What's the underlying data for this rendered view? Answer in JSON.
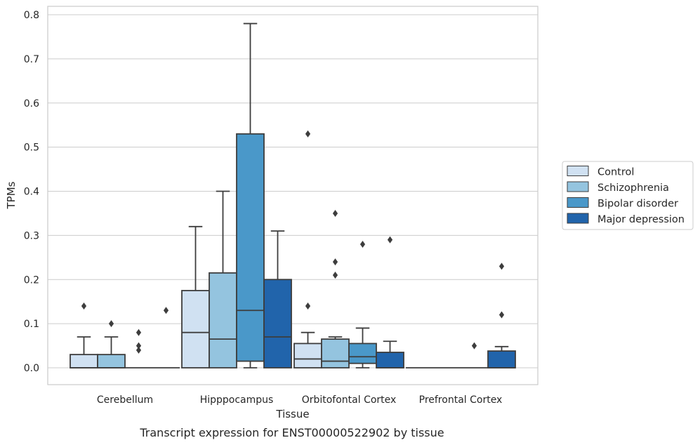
{
  "chart_data": {
    "type": "box",
    "xlabel": "Tissue",
    "ylabel": "TPMs",
    "caption": "Transcript expression for ENST00000522902 by tissue",
    "ylim": [
      -0.04,
      0.82
    ],
    "yticks": [
      "0.0",
      "0.1",
      "0.2",
      "0.3",
      "0.4",
      "0.5",
      "0.6",
      "0.7",
      "0.8"
    ],
    "grid": true,
    "legend_position": "right",
    "categories": [
      "Cerebellum",
      "Hipppocampus",
      "Orbitofontal Cortex",
      "Prefrontal Cortex"
    ],
    "series": [
      {
        "name": "Control",
        "color": "#d0e1f2",
        "boxes": [
          {
            "whislo": 0.0,
            "q1": 0.0,
            "med": 0.0,
            "q3": 0.03,
            "whishi": 0.07,
            "fliers": [
              0.14
            ]
          },
          {
            "whislo": 0.0,
            "q1": 0.0,
            "med": 0.08,
            "q3": 0.175,
            "whishi": 0.32,
            "fliers": []
          },
          {
            "whislo": 0.0,
            "q1": 0.0,
            "med": 0.02,
            "q3": 0.055,
            "whishi": 0.08,
            "fliers": [
              0.14,
              0.53
            ]
          },
          {
            "whislo": 0.0,
            "q1": 0.0,
            "med": 0.0,
            "q3": 0.0,
            "whishi": 0.0,
            "fliers": []
          }
        ]
      },
      {
        "name": "Schizophrenia",
        "color": "#94c4df",
        "boxes": [
          {
            "whislo": 0.0,
            "q1": 0.0,
            "med": 0.0,
            "q3": 0.03,
            "whishi": 0.07,
            "fliers": [
              0.1
            ]
          },
          {
            "whislo": 0.0,
            "q1": 0.0,
            "med": 0.065,
            "q3": 0.215,
            "whishi": 0.4,
            "fliers": []
          },
          {
            "whislo": 0.0,
            "q1": 0.0,
            "med": 0.015,
            "q3": 0.065,
            "whishi": 0.07,
            "fliers": [
              0.21,
              0.24,
              0.35
            ]
          },
          {
            "whislo": 0.0,
            "q1": 0.0,
            "med": 0.0,
            "q3": 0.0,
            "whishi": 0.0,
            "fliers": []
          }
        ]
      },
      {
        "name": "Bipolar disorder",
        "color": "#4a98c9",
        "boxes": [
          {
            "whislo": 0.0,
            "q1": 0.0,
            "med": 0.0,
            "q3": 0.0,
            "whishi": 0.0,
            "fliers": [
              0.04,
              0.05,
              0.08
            ]
          },
          {
            "whislo": 0.0,
            "q1": 0.015,
            "med": 0.13,
            "q3": 0.53,
            "whishi": 0.78,
            "fliers": []
          },
          {
            "whislo": 0.0,
            "q1": 0.01,
            "med": 0.025,
            "q3": 0.055,
            "whishi": 0.09,
            "fliers": [
              0.28
            ]
          },
          {
            "whislo": 0.0,
            "q1": 0.0,
            "med": 0.0,
            "q3": 0.0,
            "whishi": 0.0,
            "fliers": [
              0.05
            ]
          }
        ]
      },
      {
        "name": "Major depression",
        "color": "#2164ab",
        "boxes": [
          {
            "whislo": 0.0,
            "q1": 0.0,
            "med": 0.0,
            "q3": 0.0,
            "whishi": 0.0,
            "fliers": [
              0.13
            ]
          },
          {
            "whislo": 0.0,
            "q1": 0.0,
            "med": 0.07,
            "q3": 0.2,
            "whishi": 0.31,
            "fliers": []
          },
          {
            "whislo": 0.0,
            "q1": 0.0,
            "med": 0.0,
            "q3": 0.035,
            "whishi": 0.06,
            "fliers": [
              0.29
            ]
          },
          {
            "whislo": 0.0,
            "q1": 0.0,
            "med": 0.0,
            "q3": 0.038,
            "whishi": 0.048,
            "fliers": [
              0.12,
              0.23
            ]
          }
        ]
      }
    ]
  }
}
